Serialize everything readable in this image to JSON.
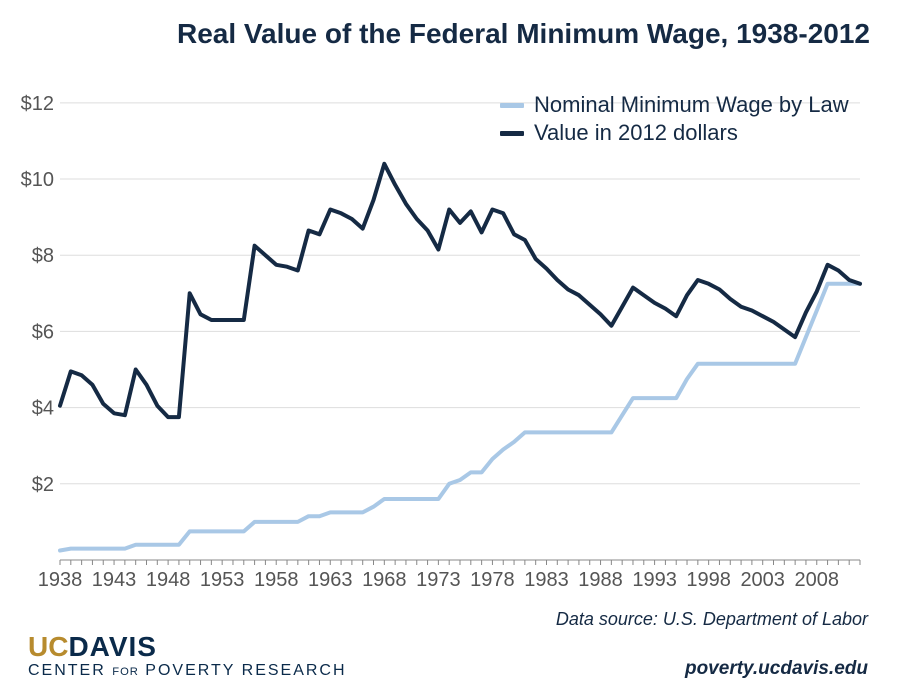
{
  "title": "Real Value of the Federal Minimum Wage, 1938-2012",
  "title_fontsize": 28,
  "title_color": "#152a44",
  "chart": {
    "type": "line",
    "background_color": "#ffffff",
    "grid_color": "#dddddd",
    "axis_color": "#888888",
    "tick_label_color": "#555555",
    "tick_fontsize": 20,
    "x": {
      "min": 1938,
      "max": 2012,
      "ticks": [
        1938,
        1943,
        1948,
        1953,
        1958,
        1963,
        1968,
        1973,
        1978,
        1983,
        1988,
        1993,
        1998,
        2003,
        2008
      ],
      "minor_step": 1
    },
    "y": {
      "min": 0,
      "max": 12.6,
      "ticks": [
        2,
        4,
        6,
        8,
        10,
        12
      ],
      "prefix": "$"
    },
    "series": [
      {
        "name": "Nominal Minimum Wage by Law",
        "color": "#a9c8e6",
        "line_width": 4,
        "years": [
          1938,
          1939,
          1940,
          1941,
          1942,
          1943,
          1944,
          1945,
          1946,
          1947,
          1948,
          1949,
          1950,
          1951,
          1952,
          1953,
          1954,
          1955,
          1956,
          1957,
          1958,
          1959,
          1960,
          1961,
          1962,
          1963,
          1964,
          1965,
          1966,
          1967,
          1968,
          1969,
          1970,
          1971,
          1972,
          1973,
          1974,
          1975,
          1976,
          1977,
          1978,
          1979,
          1980,
          1981,
          1982,
          1983,
          1984,
          1985,
          1986,
          1987,
          1988,
          1989,
          1990,
          1991,
          1992,
          1993,
          1994,
          1995,
          1996,
          1997,
          1998,
          1999,
          2000,
          2001,
          2002,
          2003,
          2004,
          2005,
          2006,
          2007,
          2008,
          2009,
          2010,
          2011,
          2012
        ],
        "values": [
          0.25,
          0.3,
          0.3,
          0.3,
          0.3,
          0.3,
          0.3,
          0.4,
          0.4,
          0.4,
          0.4,
          0.4,
          0.75,
          0.75,
          0.75,
          0.75,
          0.75,
          0.75,
          1.0,
          1.0,
          1.0,
          1.0,
          1.0,
          1.15,
          1.15,
          1.25,
          1.25,
          1.25,
          1.25,
          1.4,
          1.6,
          1.6,
          1.6,
          1.6,
          1.6,
          1.6,
          2.0,
          2.1,
          2.3,
          2.3,
          2.65,
          2.9,
          3.1,
          3.35,
          3.35,
          3.35,
          3.35,
          3.35,
          3.35,
          3.35,
          3.35,
          3.35,
          3.8,
          4.25,
          4.25,
          4.25,
          4.25,
          4.25,
          4.75,
          5.15,
          5.15,
          5.15,
          5.15,
          5.15,
          5.15,
          5.15,
          5.15,
          5.15,
          5.15,
          5.85,
          6.55,
          7.25,
          7.25,
          7.25,
          7.25
        ]
      },
      {
        "name": "Value in 2012 dollars",
        "color": "#152a44",
        "line_width": 4,
        "years": [
          1938,
          1939,
          1940,
          1941,
          1942,
          1943,
          1944,
          1945,
          1946,
          1947,
          1948,
          1949,
          1950,
          1951,
          1952,
          1953,
          1954,
          1955,
          1956,
          1957,
          1958,
          1959,
          1960,
          1961,
          1962,
          1963,
          1964,
          1965,
          1966,
          1967,
          1968,
          1969,
          1970,
          1971,
          1972,
          1973,
          1974,
          1975,
          1976,
          1977,
          1978,
          1979,
          1980,
          1981,
          1982,
          1983,
          1984,
          1985,
          1986,
          1987,
          1988,
          1989,
          1990,
          1991,
          1992,
          1993,
          1994,
          1995,
          1996,
          1997,
          1998,
          1999,
          2000,
          2001,
          2002,
          2003,
          2004,
          2005,
          2006,
          2007,
          2008,
          2009,
          2010,
          2011,
          2012
        ],
        "values": [
          4.05,
          4.95,
          4.85,
          4.6,
          4.1,
          3.85,
          3.8,
          5.0,
          4.6,
          4.05,
          3.75,
          3.75,
          7.0,
          6.45,
          6.3,
          6.3,
          6.3,
          6.3,
          8.25,
          8.0,
          7.75,
          7.7,
          7.6,
          8.65,
          8.55,
          9.2,
          9.1,
          8.95,
          8.7,
          9.45,
          10.4,
          9.85,
          9.35,
          8.95,
          8.65,
          8.15,
          9.2,
          8.85,
          9.15,
          8.6,
          9.2,
          9.1,
          8.55,
          8.4,
          7.9,
          7.65,
          7.35,
          7.1,
          6.95,
          6.7,
          6.45,
          6.15,
          6.65,
          7.15,
          6.95,
          6.75,
          6.6,
          6.4,
          6.95,
          7.35,
          7.25,
          7.1,
          6.85,
          6.65,
          6.55,
          6.4,
          6.25,
          6.05,
          5.85,
          6.5,
          7.05,
          7.75,
          7.6,
          7.35,
          7.25
        ]
      }
    ]
  },
  "legend": {
    "items": [
      {
        "label": "Nominal Minimum Wage by Law",
        "color": "#a9c8e6"
      },
      {
        "label": "Value in 2012 dollars",
        "color": "#152a44"
      }
    ],
    "fontsize": 22
  },
  "footer": {
    "logo_uc": "UC",
    "logo_davis": "DAVIS",
    "logo_line2_pre": "CENTER ",
    "logo_line2_for": "FOR",
    "logo_line2_post": " POVERTY RESEARCH",
    "logo_top_fontsize": 28,
    "logo_bottom_fontsize": 16,
    "data_source": "Data source: U.S. Department of Labor",
    "data_source_fontsize": 18,
    "url": "poverty.ucdavis.edu",
    "url_fontsize": 19
  }
}
